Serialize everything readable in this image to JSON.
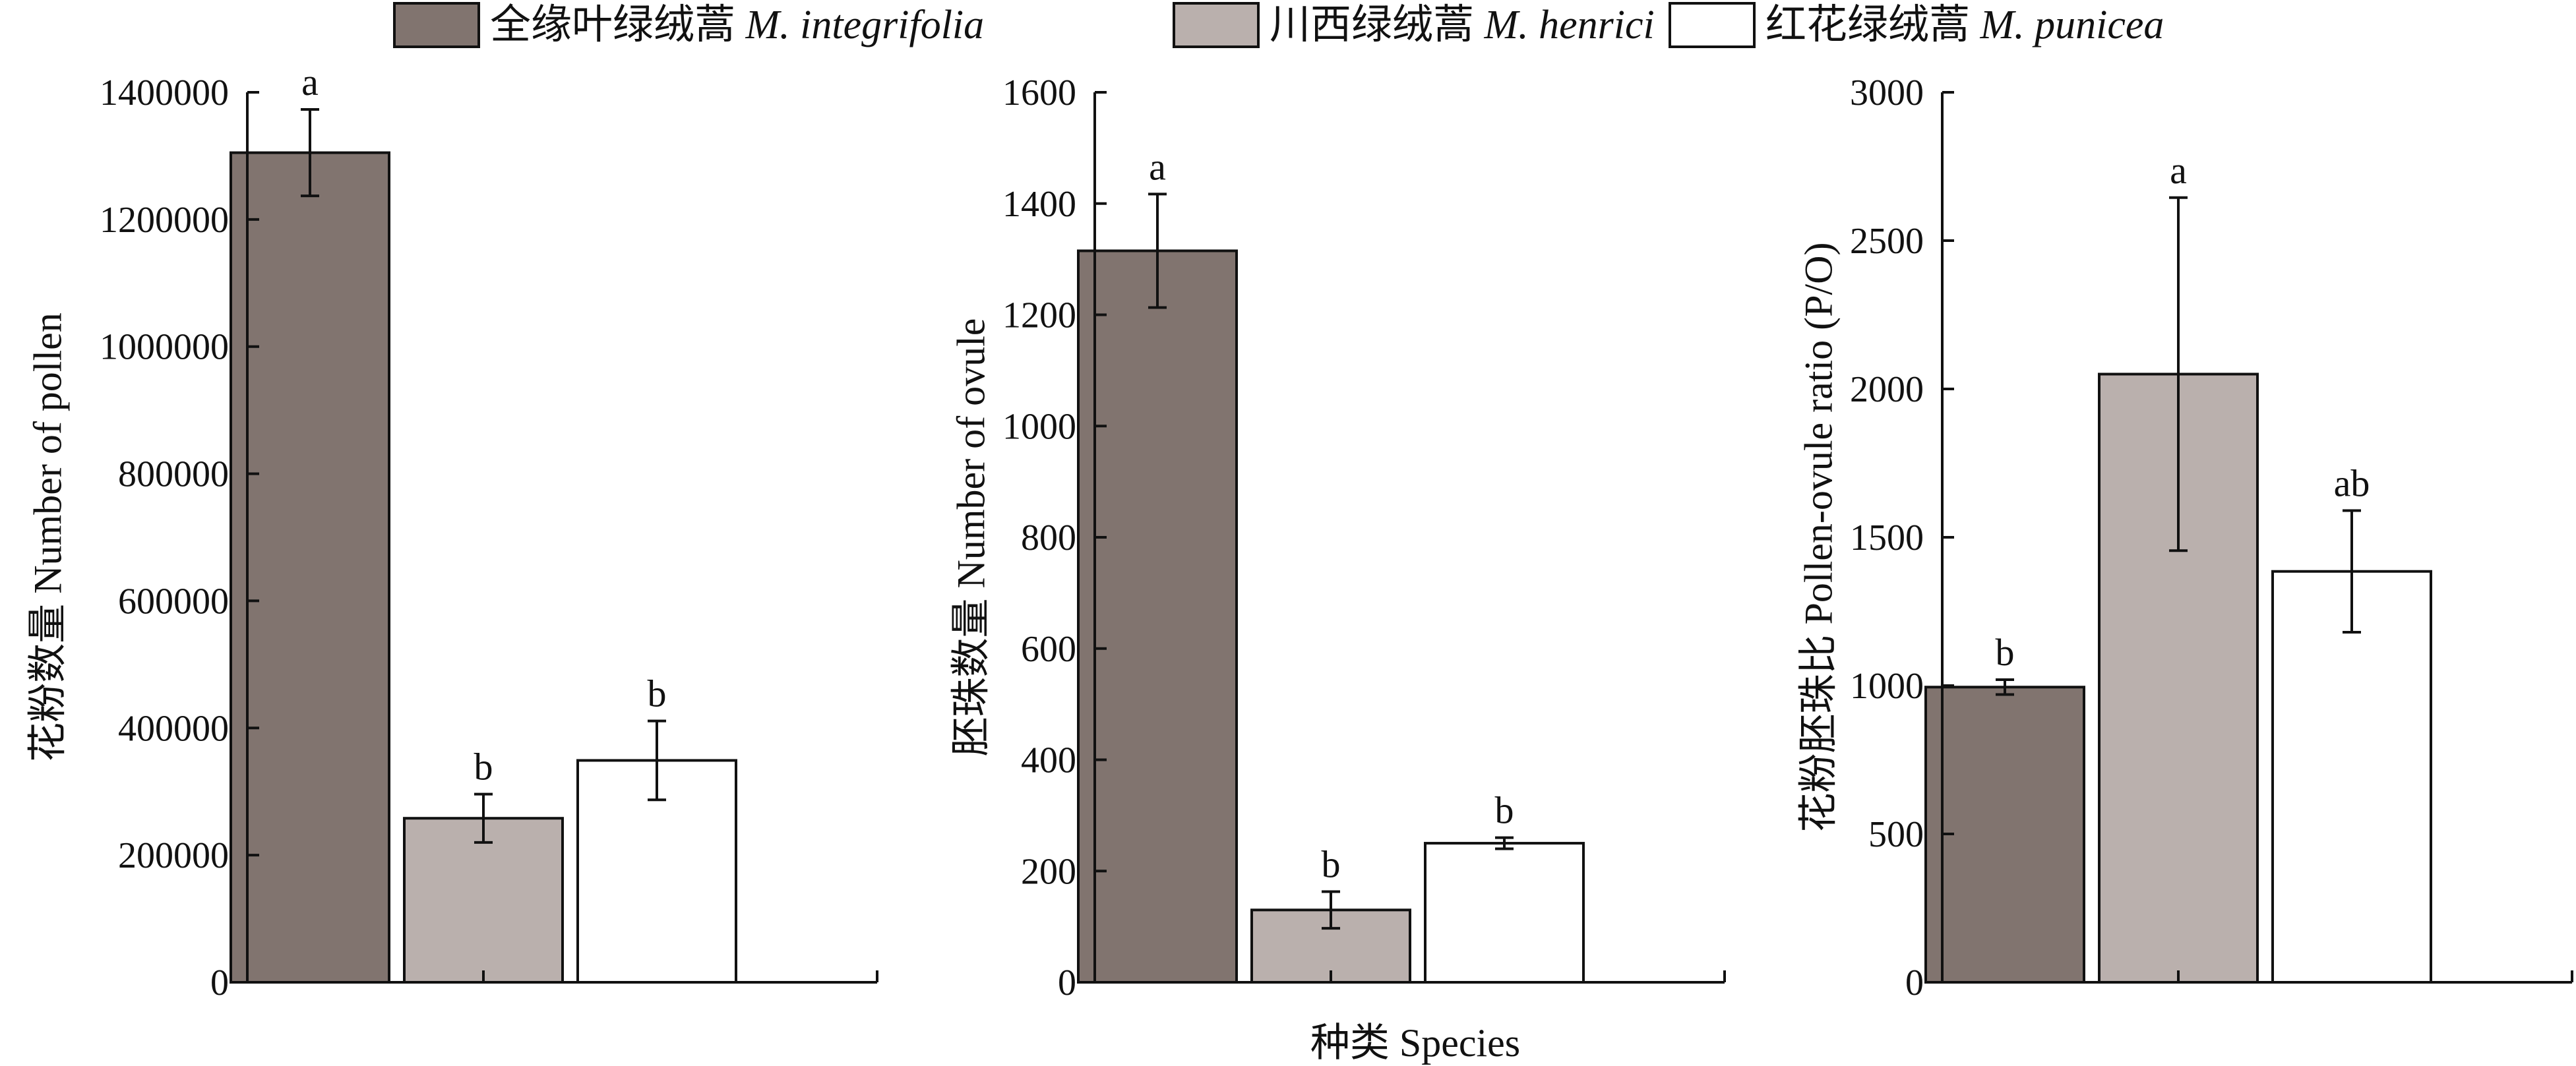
{
  "legend": {
    "entries": [
      {
        "cn": "全缘叶绿绒蒿",
        "latin": "M. integrifolia",
        "color": "#81746f"
      },
      {
        "cn": "川西绿绒蒿",
        "latin": "M. henrici",
        "color": "#bab0ad"
      },
      {
        "cn": "红花绿绒蒿",
        "latin": "M. punicea",
        "color": "#ffffff"
      }
    ]
  },
  "shared_xlabel": "种类 Species",
  "chart_data": [
    {
      "type": "bar",
      "title": "",
      "xlabel": "",
      "ylabel": "花粉数量 Number of pollen",
      "ylim": [
        0,
        1400000
      ],
      "ytick_labels": [
        "0",
        "200000",
        "400000",
        "600000",
        "800000",
        "1000000",
        "1200000",
        "1400000"
      ],
      "categories": [
        "M. integrifolia",
        "M. henrici",
        "M. punicea"
      ],
      "values": [
        1305000,
        258000,
        349000
      ],
      "errors": [
        68000,
        38000,
        62000
      ],
      "significance": [
        "a",
        "b",
        "b"
      ],
      "colors": [
        "#81746f",
        "#bab0ad",
        "#ffffff"
      ]
    },
    {
      "type": "bar",
      "title": "",
      "xlabel": "",
      "ylabel": "胚珠数量 Number of ovule",
      "ylim": [
        0,
        1600
      ],
      "ytick_labels": [
        "0",
        "200",
        "400",
        "600",
        "800",
        "1000",
        "1200",
        "1400",
        "1600"
      ],
      "categories": [
        "M. integrifolia",
        "M. henrici",
        "M. punicea"
      ],
      "values": [
        1315,
        130,
        250
      ],
      "errors": [
        102,
        33,
        10
      ],
      "significance": [
        "a",
        "b",
        "b"
      ],
      "colors": [
        "#81746f",
        "#bab0ad",
        "#ffffff"
      ]
    },
    {
      "type": "bar",
      "title": "",
      "xlabel": "",
      "ylabel": "花粉胚珠比 Pollen-ovule ratio (P/O)",
      "ylim": [
        0,
        3000
      ],
      "ytick_labels": [
        "0",
        "500",
        "1000",
        "1500",
        "2000",
        "2500",
        "3000"
      ],
      "categories": [
        "M. integrifolia",
        "M. henrici",
        "M. punicea"
      ],
      "values": [
        995,
        2050,
        1385
      ],
      "errors": [
        25,
        595,
        205
      ],
      "significance": [
        "b",
        "a",
        "ab"
      ],
      "colors": [
        "#81746f",
        "#bab0ad",
        "#ffffff"
      ]
    }
  ]
}
